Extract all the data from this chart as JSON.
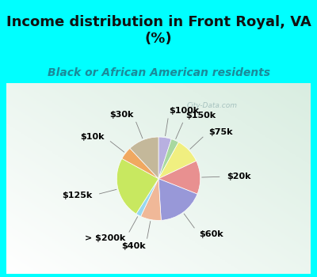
{
  "title": "Income distribution in Front Royal, VA\n(%)",
  "subtitle": "Black or African American residents",
  "background_cyan": "#00FFFF",
  "background_chart_color": "#e0f0e8",
  "labels": [
    "$100k",
    "$150k",
    "$75k",
    "$20k",
    "$60k",
    "$40k",
    "> $200k",
    "$125k",
    "$10k",
    "$30k"
  ],
  "sizes": [
    5,
    3,
    10,
    13,
    18,
    8,
    2,
    24,
    5,
    12
  ],
  "colors": [
    "#b8b0e0",
    "#a8d8a0",
    "#f0ef80",
    "#e89090",
    "#9898d8",
    "#f0b898",
    "#98d8f0",
    "#c8e860",
    "#f0a860",
    "#c4b89a"
  ],
  "watermark": "City-Data.com",
  "label_fontsize": 8,
  "title_fontsize": 13,
  "subtitle_fontsize": 10,
  "subtitle_color": "#1a8a9a",
  "title_color": "#111111"
}
